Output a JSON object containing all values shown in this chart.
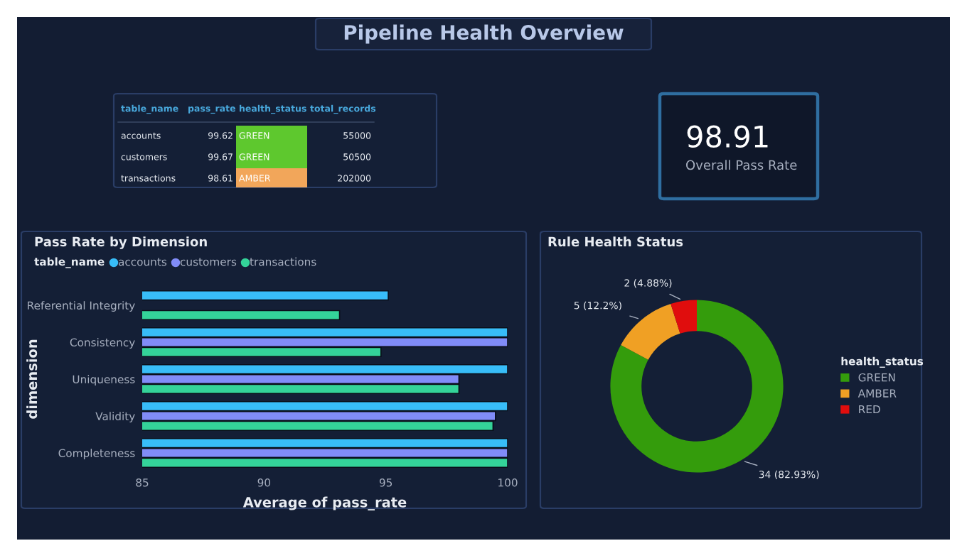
{
  "chart_data": [
    {
      "type": "other",
      "title": "Pipeline Health Overview"
    },
    {
      "type": "other",
      "categories": [
        "table_name",
        "pass_rate",
        "health_status",
        "total_records"
      ],
      "cell_labels": [
        [
          "accounts",
          "99.62",
          "GREEN",
          "55000"
        ],
        [
          "customers",
          "99.67",
          "GREEN",
          "50500"
        ],
        [
          "transactions",
          "98.61",
          "AMBER",
          "202000"
        ]
      ],
      "colors": [
        [
          null,
          null,
          "#5ec82e",
          null
        ],
        [
          null,
          null,
          "#5ec82e",
          null
        ],
        [
          null,
          null,
          "#f2a65a",
          null
        ]
      ]
    },
    {
      "type": "other",
      "categories": [
        "Overall Pass Rate"
      ],
      "values": [
        98.91
      ],
      "data_labels": true
    },
    {
      "type": "bar",
      "orientation": "horizontal",
      "title": "Pass Rate by Dimension",
      "xlabel": "Average of pass_rate",
      "ylabel": "dimension",
      "legend_title": "table_name",
      "legend": "top left",
      "grid": false,
      "categories": [
        "Referential Integrity",
        "Consistency",
        "Uniqueness",
        "Validity",
        "Completeness"
      ],
      "xlim": [
        85,
        100
      ],
      "xticks": [
        85,
        90,
        95,
        100
      ],
      "series": [
        {
          "name": "accounts",
          "color": "#38bdf8",
          "values": [
            95.1,
            100,
            100,
            100,
            100
          ]
        },
        {
          "name": "customers",
          "color": "#818cf8",
          "values": [
            null,
            100,
            98.0,
            99.5,
            100
          ]
        },
        {
          "name": "transactions",
          "color": "#34d399",
          "values": [
            93.1,
            94.8,
            98.0,
            99.4,
            100
          ]
        }
      ]
    },
    {
      "type": "donut",
      "title": "Rule Health Status",
      "legend_title": "health_status",
      "legend": "right",
      "categories": [
        "GREEN",
        "AMBER",
        "RED"
      ],
      "values": [
        34,
        5,
        2
      ],
      "colors": [
        "#349c0c",
        "#f0a024",
        "#e00d0d"
      ],
      "value_labels": [
        "34 (82.93%)",
        "5 (12.2%)",
        "2 (4.88%)"
      ]
    }
  ]
}
